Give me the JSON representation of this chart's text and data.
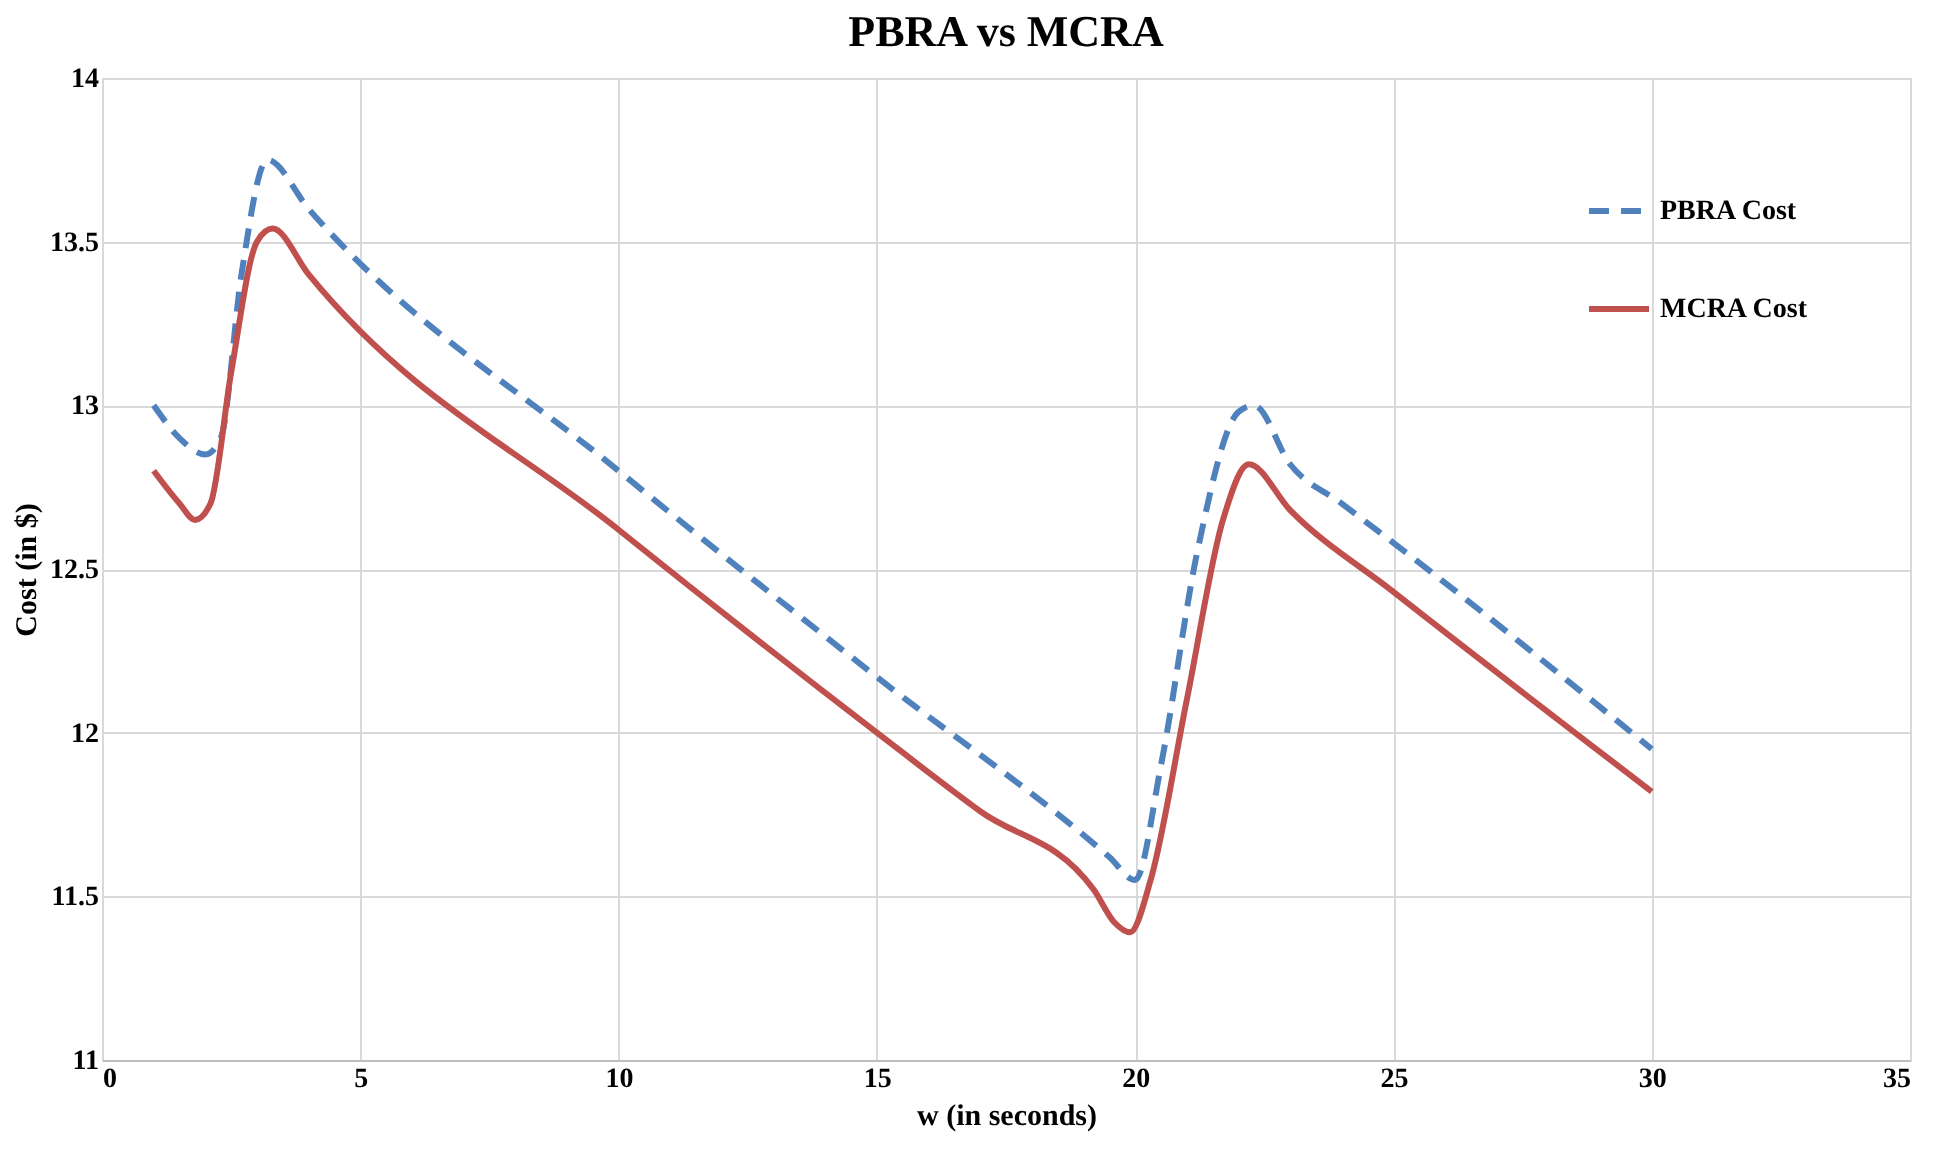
{
  "chart_data": {
    "type": "line",
    "title": "PBRA vs MCRA",
    "xlabel": "w (in seconds)",
    "ylabel": "Cost (in $)",
    "xlim": [
      0,
      35
    ],
    "xticks": [
      0,
      5,
      10,
      15,
      20,
      25,
      30,
      35
    ],
    "ylim": [
      11,
      14
    ],
    "yticks": [
      11,
      11.5,
      12,
      12.5,
      13,
      13.5,
      14
    ],
    "grid": true,
    "legend": "top right",
    "marker": "none",
    "series": [
      {
        "name": "PBRA Cost",
        "color": "#4f81bd",
        "line_style": "dashed",
        "x": [
          1,
          1.5,
          2,
          2.3,
          2.7,
          3.2,
          4,
          10,
          15,
          19.5,
          20,
          20.5,
          21.2,
          22,
          22.3,
          23,
          24,
          25,
          30
        ],
        "values": [
          13.0,
          12.9,
          12.85,
          12.9,
          13.4,
          13.75,
          13.6,
          12.8,
          12.17,
          11.62,
          11.55,
          11.9,
          12.55,
          12.98,
          13.0,
          12.82,
          12.7,
          12.58,
          11.95
        ]
      },
      {
        "name": "MCRA Cost",
        "color": "#c0504d",
        "line_style": "solid",
        "x": [
          1,
          1.5,
          1.8,
          2.1,
          2.5,
          3,
          3.3,
          4,
          10,
          15,
          17,
          19.2,
          19.6,
          19.9,
          20.3,
          21,
          21.7,
          22.2,
          23,
          25,
          30
        ],
        "values": [
          12.8,
          12.7,
          12.65,
          12.7,
          13.1,
          13.5,
          13.54,
          13.4,
          12.62,
          12.0,
          11.76,
          11.52,
          11.42,
          11.39,
          11.55,
          12.1,
          12.65,
          12.82,
          12.68,
          12.43,
          11.82
        ]
      }
    ]
  }
}
